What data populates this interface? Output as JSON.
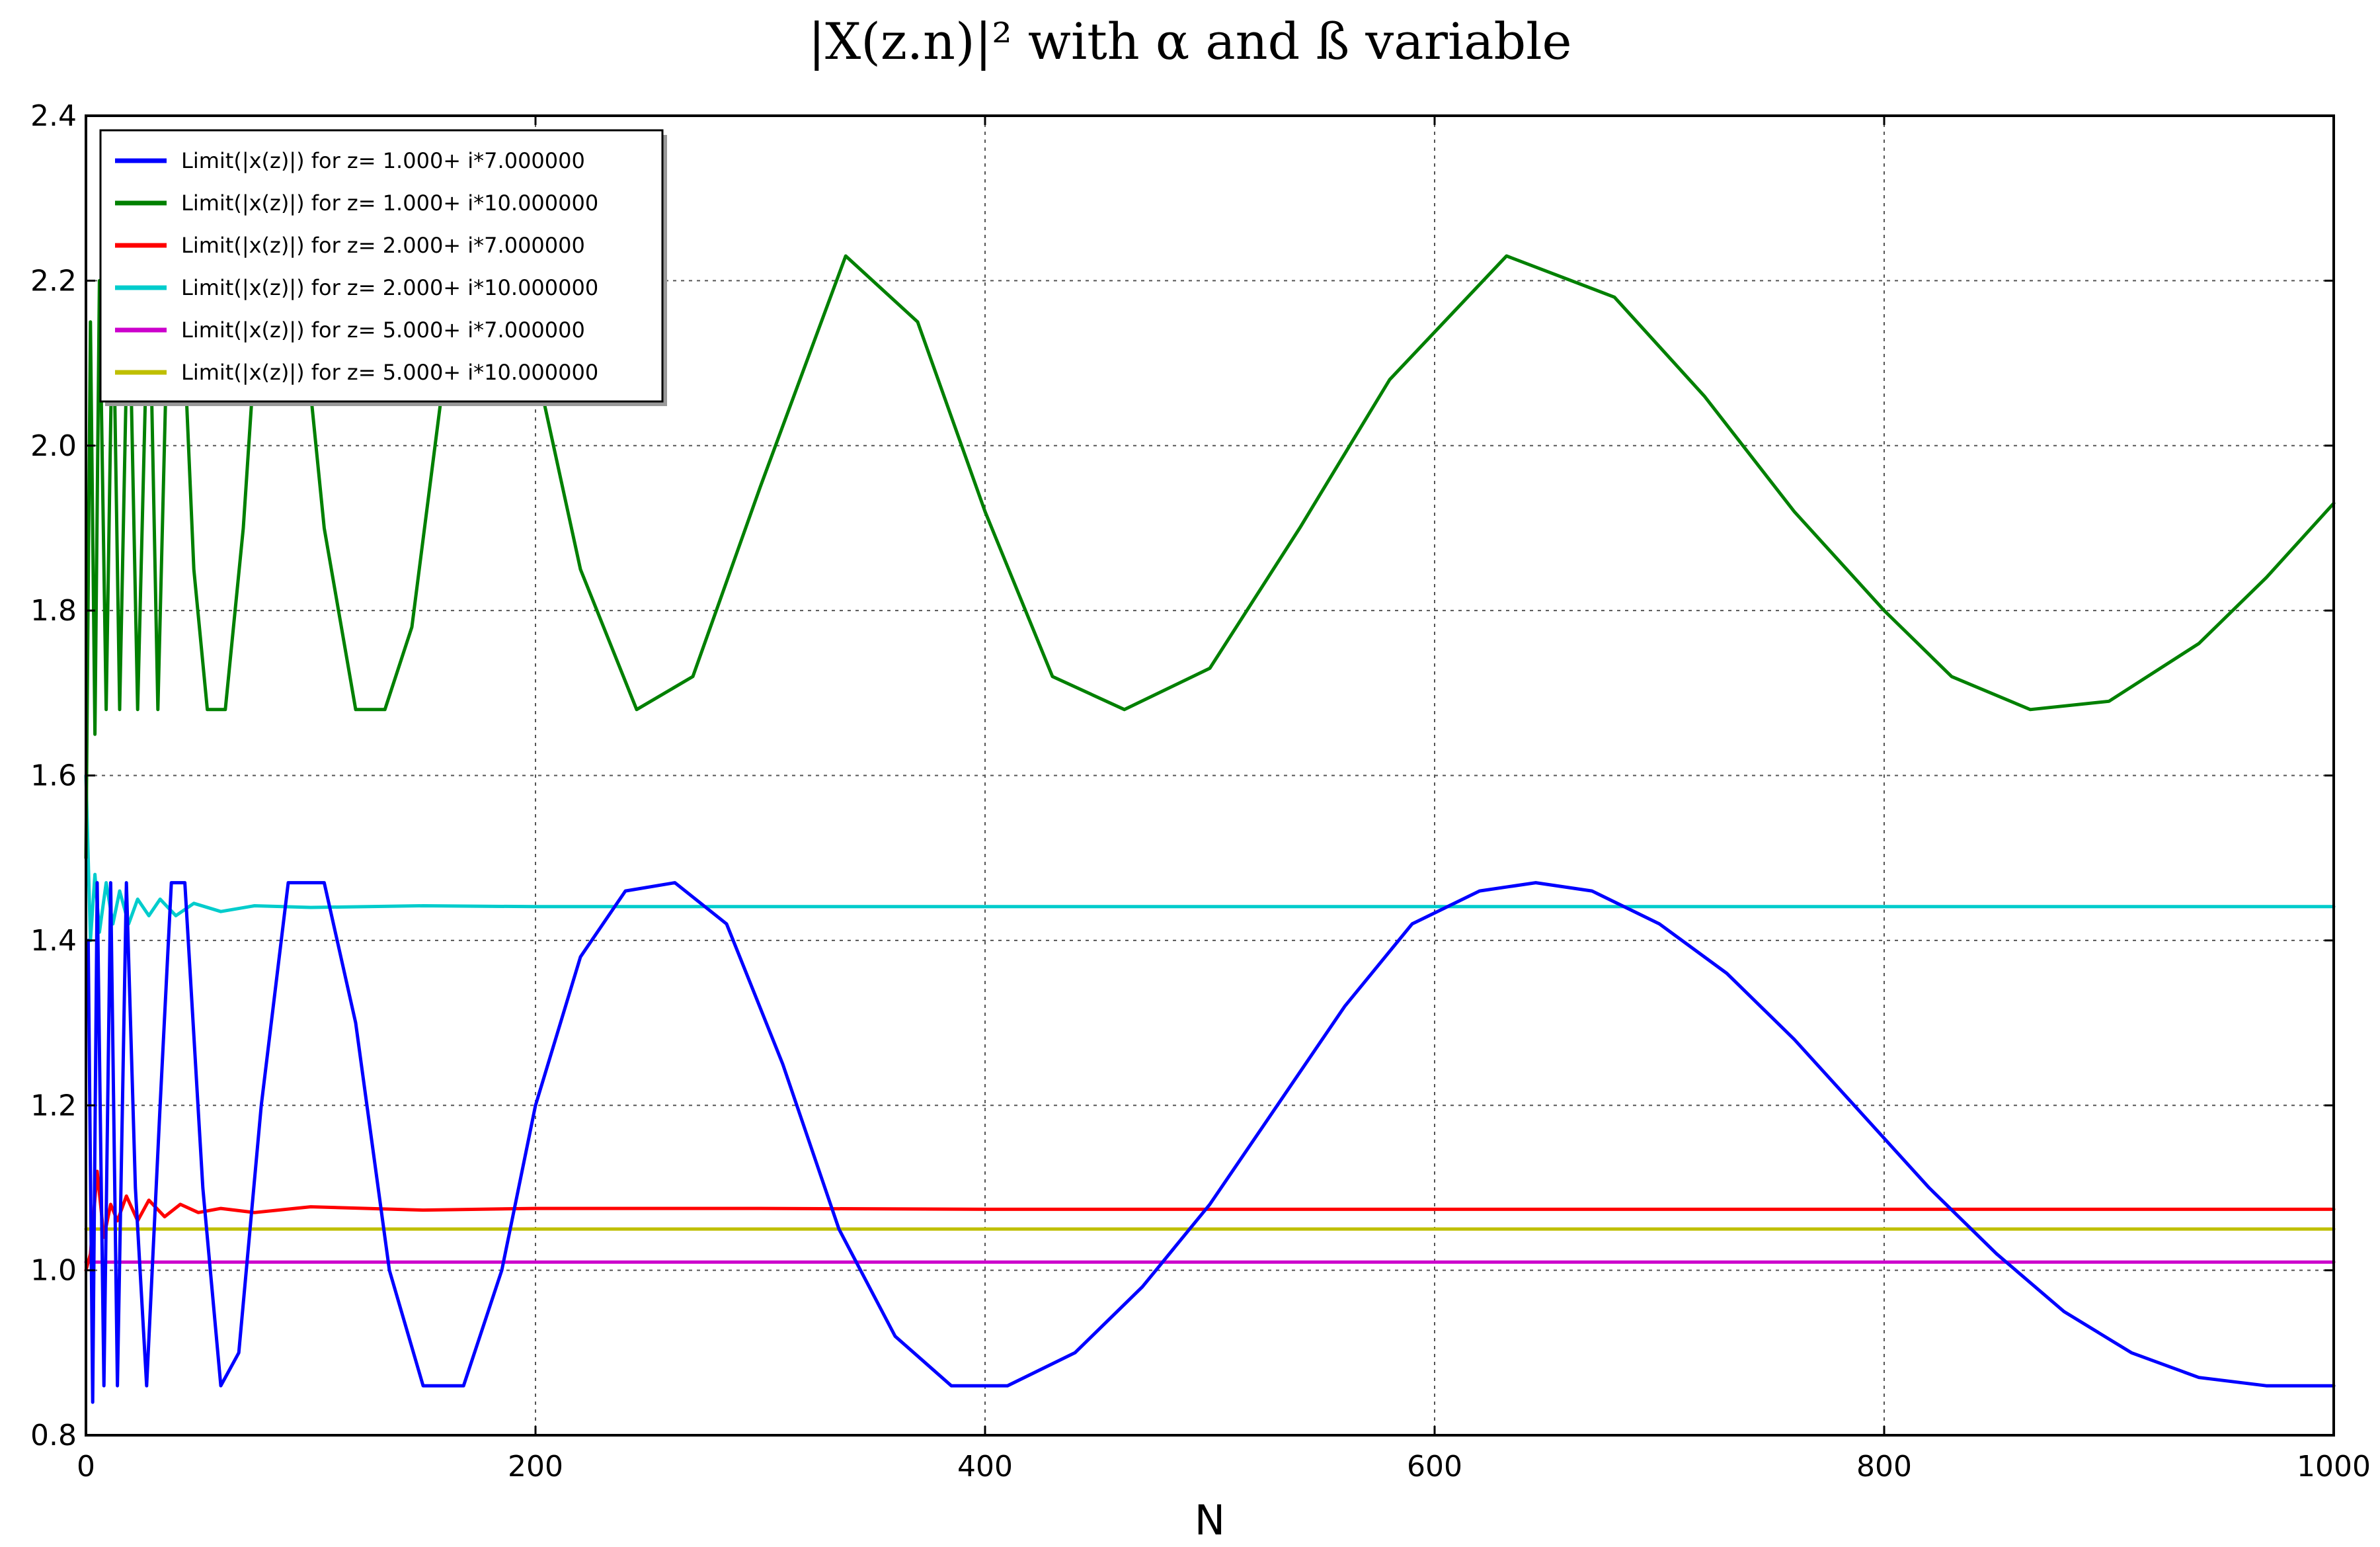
{
  "chart_data": {
    "type": "line",
    "title": "|X(z.n)|² with α and ß variable",
    "xlabel": "N",
    "ylabel": "",
    "xlim": [
      0,
      1000
    ],
    "ylim": [
      0.8,
      2.4
    ],
    "x_ticks": [
      0,
      200,
      400,
      600,
      800,
      1000
    ],
    "y_ticks": [
      0.8,
      1.0,
      1.2,
      1.4,
      1.6,
      1.8,
      2.0,
      2.2,
      2.4
    ],
    "y_tick_labels": [
      "0.8",
      "1.0",
      "1.2",
      "1.4",
      "1.6",
      "1.8",
      "2.0",
      "2.2",
      "2.4"
    ],
    "grid": true,
    "legend_position": "top-left",
    "series": [
      {
        "name": "Limit(|x(z)|) for z= 1.000+ i*7.000000",
        "color": "#0000ff",
        "x": [
          1,
          3,
          5,
          8,
          11,
          14,
          18,
          22,
          27,
          33,
          38,
          44,
          52,
          60,
          68,
          78,
          90,
          106,
          120,
          135,
          150,
          168,
          185,
          200,
          220,
          240,
          262,
          285,
          310,
          335,
          360,
          385,
          410,
          440,
          470,
          500,
          530,
          560,
          590,
          620,
          645,
          670,
          700,
          730,
          760,
          790,
          820,
          850,
          880,
          910,
          940,
          970,
          1000
        ],
        "y": [
          1.4,
          0.84,
          1.47,
          0.86,
          1.47,
          0.86,
          1.47,
          1.1,
          0.86,
          1.2,
          1.47,
          1.47,
          1.1,
          0.86,
          0.9,
          1.2,
          1.47,
          1.47,
          1.3,
          1.0,
          0.86,
          0.86,
          1.0,
          1.2,
          1.38,
          1.46,
          1.47,
          1.42,
          1.25,
          1.05,
          0.92,
          0.86,
          0.86,
          0.9,
          0.98,
          1.08,
          1.2,
          1.32,
          1.42,
          1.46,
          1.47,
          1.46,
          1.42,
          1.36,
          1.28,
          1.19,
          1.1,
          1.02,
          0.95,
          0.9,
          0.87,
          0.86,
          0.86
        ]
      },
      {
        "name": "Limit(|x(z)|) for z= 1.000+ i*10.000000",
        "color": "#008000",
        "x": [
          0,
          2,
          4,
          6,
          9,
          12,
          15,
          19,
          23,
          28,
          32,
          37,
          42,
          48,
          54,
          62,
          70,
          78,
          85,
          95,
          106,
          120,
          133,
          145,
          160,
          180,
          200,
          220,
          245,
          270,
          300,
          338,
          370,
          400,
          430,
          462,
          500,
          540,
          580,
          632,
          680,
          720,
          760,
          800,
          830,
          865,
          900,
          940,
          970,
          1000
        ],
        "y": [
          1.5,
          2.15,
          1.65,
          2.2,
          1.68,
          2.2,
          1.68,
          2.22,
          1.68,
          2.23,
          1.68,
          2.23,
          2.23,
          1.85,
          1.68,
          1.68,
          1.9,
          2.23,
          2.23,
          2.2,
          1.9,
          1.68,
          1.68,
          1.78,
          2.1,
          2.23,
          2.1,
          1.85,
          1.68,
          1.72,
          1.95,
          2.23,
          2.15,
          1.92,
          1.72,
          1.68,
          1.73,
          1.9,
          2.08,
          2.23,
          2.18,
          2.06,
          1.92,
          1.8,
          1.72,
          1.68,
          1.69,
          1.76,
          1.84,
          1.93
        ]
      },
      {
        "name": "Limit(|x(z)|) for z= 2.000+ i*7.000000",
        "color": "#ff0000",
        "x": [
          0,
          2,
          5,
          8,
          11,
          14,
          18,
          23,
          28,
          35,
          42,
          50,
          60,
          75,
          100,
          150,
          200,
          300,
          400,
          500,
          600,
          700,
          800,
          900,
          1000
        ],
        "y": [
          1.0,
          1.02,
          1.12,
          1.04,
          1.08,
          1.06,
          1.09,
          1.06,
          1.085,
          1.065,
          1.08,
          1.07,
          1.075,
          1.07,
          1.077,
          1.073,
          1.075,
          1.075,
          1.074,
          1.074,
          1.074,
          1.074,
          1.074,
          1.074,
          1.074
        ]
      },
      {
        "name": "Limit(|x(z)|) for z= 2.000+ i*10.000000",
        "color": "#00cccc",
        "x": [
          0,
          2,
          4,
          6,
          9,
          12,
          15,
          19,
          23,
          28,
          33,
          40,
          48,
          60,
          75,
          100,
          150,
          200,
          300,
          400,
          500,
          600,
          700,
          800,
          900,
          1000
        ],
        "y": [
          1.6,
          1.4,
          1.48,
          1.41,
          1.47,
          1.42,
          1.46,
          1.42,
          1.45,
          1.43,
          1.45,
          1.43,
          1.445,
          1.435,
          1.442,
          1.44,
          1.442,
          1.441,
          1.441,
          1.441,
          1.441,
          1.441,
          1.441,
          1.441,
          1.441,
          1.441
        ]
      },
      {
        "name": "Limit(|x(z)|) for z= 5.000+ i*7.000000",
        "color": "#cc00cc",
        "x": [
          0,
          1000
        ],
        "y": [
          1.01,
          1.01
        ]
      },
      {
        "name": "Limit(|x(z)|) for z= 5.000+ i*10.000000",
        "color": "#bfbf00",
        "x": [
          0,
          1000
        ],
        "y": [
          1.05,
          1.05
        ]
      }
    ]
  }
}
